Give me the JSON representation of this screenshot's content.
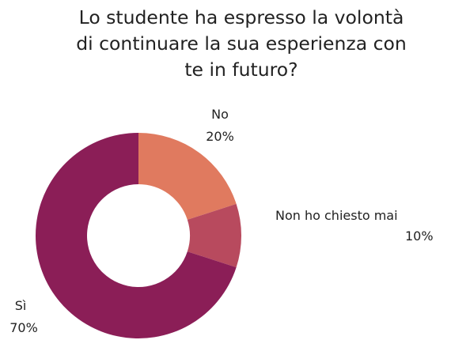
{
  "chart_data": {
    "type": "pie",
    "style": "donut",
    "title_lines": [
      "Lo studente ha espresso la volontà",
      "di continuare la sua esperienza con",
      "te in futuro?"
    ],
    "slices": [
      {
        "label": "No",
        "value": 20,
        "value_label": "20%",
        "color": "#E07A5F"
      },
      {
        "label": "Non ho chiesto mai",
        "value": 10,
        "value_label": "10%",
        "color": "#B84A5E"
      },
      {
        "label": "Sì",
        "value": 70,
        "value_label": "70%",
        "color": "#8B1E57"
      }
    ],
    "legend": "none",
    "grid": false
  }
}
